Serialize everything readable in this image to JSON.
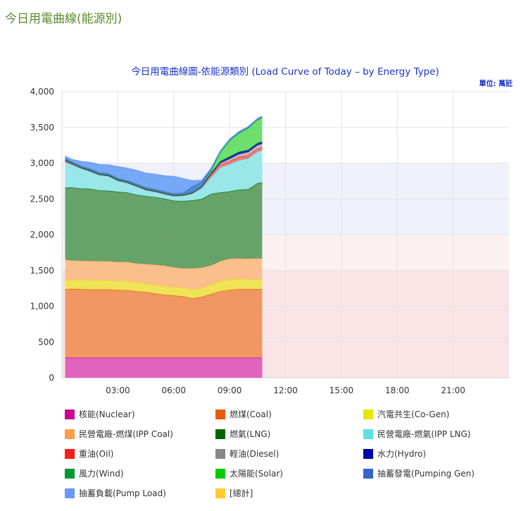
{
  "page": {
    "title": "今日用電曲線(能源別)"
  },
  "chart": {
    "title": "今日用電曲線圖-依能源類別 (Load Curve of Today – by Energy Type)",
    "unit": "單位: 萬瓩"
  },
  "chart_data": {
    "type": "area",
    "stacked": true,
    "title": "今日用電曲線圖-依能源類別 (Load Curve of Today – by Energy Type)",
    "unit_label": "單位: 萬瓩",
    "xlabel": "",
    "ylabel": "",
    "ylim": [
      0,
      4000
    ],
    "xlim_hours": [
      0,
      24
    ],
    "y_ticks": [
      "0",
      "500",
      "1,000",
      "1,500",
      "2,000",
      "2,500",
      "3,000",
      "3,500",
      "4,000"
    ],
    "y_tick_values": [
      0,
      500,
      1000,
      1500,
      2000,
      2500,
      3000,
      3500,
      4000
    ],
    "x_ticks": [
      "03:00",
      "06:00",
      "09:00",
      "12:00",
      "15:00",
      "18:00",
      "21:00"
    ],
    "x_tick_hours": [
      3,
      6,
      9,
      12,
      15,
      18,
      21
    ],
    "grid": true,
    "legend_position": "bottom",
    "background_bands": [
      {
        "from": 0,
        "to": 1500,
        "color": "#f9e3e5"
      },
      {
        "from": 1500,
        "to": 2000,
        "color": "#fcf1f1"
      },
      {
        "from": 2000,
        "to": 3000,
        "color": "#eff0fa"
      }
    ],
    "x": [
      0.17,
      0.5,
      1.0,
      1.5,
      2.0,
      2.5,
      3.0,
      3.5,
      4.0,
      4.5,
      5.0,
      5.5,
      6.0,
      6.5,
      7.0,
      7.5,
      8.0,
      8.5,
      9.0,
      9.5,
      10.0,
      10.5,
      10.75
    ],
    "series": [
      {
        "name": "核能(Nuclear)",
        "color": "#cc0099",
        "fill": "#e05cbc",
        "values": [
          280,
          280,
          280,
          280,
          280,
          280,
          280,
          280,
          280,
          280,
          280,
          280,
          280,
          280,
          280,
          280,
          280,
          280,
          280,
          280,
          280,
          280,
          280
        ]
      },
      {
        "name": "燃煤(Coal)",
        "color": "#e85c0d",
        "fill": "#ee915a",
        "values": [
          955,
          965,
          960,
          955,
          955,
          955,
          950,
          945,
          930,
          920,
          900,
          880,
          870,
          860,
          830,
          850,
          890,
          930,
          950,
          960,
          960,
          960,
          960
        ]
      },
      {
        "name": "汽電共生(Co-Gen)",
        "color": "#e6e600",
        "fill": "#eee350",
        "values": [
          135,
          125,
          130,
          128,
          130,
          125,
          125,
          125,
          120,
          120,
          120,
          118,
          115,
          120,
          120,
          120,
          130,
          140,
          145,
          140,
          135,
          130,
          130
        ]
      },
      {
        "name": "民營電廠-燃煤(IPP Coal)",
        "color": "#ff9f4a",
        "fill": "#fbbc88",
        "values": [
          280,
          270,
          265,
          270,
          265,
          270,
          265,
          270,
          270,
          270,
          280,
          290,
          280,
          270,
          300,
          290,
          270,
          280,
          290,
          290,
          290,
          300,
          300
        ]
      },
      {
        "name": "燃氣(LNG)",
        "color": "#006600",
        "fill": "#5e9e62",
        "values": [
          1010,
          1020,
          1010,
          1010,
          990,
          985,
          980,
          970,
          960,
          950,
          945,
          935,
          930,
          940,
          950,
          960,
          1000,
          960,
          940,
          960,
          970,
          1050,
          1060
        ]
      },
      {
        "name": "民營電廠-燃氣(IPP LNG)",
        "color": "#5ce0e0",
        "fill": "#95e6e8",
        "values": [
          350,
          320,
          280,
          240,
          210,
          200,
          150,
          130,
          110,
          80,
          70,
          60,
          60,
          70,
          90,
          150,
          230,
          350,
          380,
          410,
          430,
          440,
          450
        ]
      },
      {
        "name": "重油(Oil)",
        "color": "#ff1a1a",
        "fill": "#f77070",
        "values": [
          30,
          20,
          15,
          15,
          15,
          15,
          15,
          15,
          15,
          15,
          15,
          15,
          15,
          15,
          15,
          20,
          40,
          40,
          45,
          45,
          45,
          45,
          45
        ]
      },
      {
        "name": "輕油(Diesel)",
        "color": "#888888",
        "fill": "#bbbbbb",
        "values": [
          0,
          0,
          0,
          0,
          0,
          0,
          0,
          0,
          0,
          0,
          0,
          0,
          0,
          0,
          0,
          0,
          5,
          20,
          30,
          40,
          45,
          45,
          45
        ]
      },
      {
        "name": "水力(Hydro)",
        "color": "#0000aa",
        "fill": "#2222aa",
        "values": [
          0,
          0,
          0,
          0,
          0,
          0,
          0,
          0,
          0,
          0,
          0,
          0,
          0,
          0,
          0,
          0,
          10,
          20,
          25,
          25,
          25,
          25,
          25
        ]
      },
      {
        "name": "風力(Wind)",
        "color": "#009933",
        "fill": "#2e8b57",
        "values": [
          10,
          10,
          10,
          10,
          10,
          10,
          10,
          10,
          10,
          10,
          10,
          10,
          10,
          10,
          10,
          10,
          10,
          10,
          10,
          10,
          10,
          10,
          10
        ]
      },
      {
        "name": "太陽能(Solar)",
        "color": "#00cc00",
        "fill": "#66dd66",
        "values": [
          0,
          0,
          0,
          0,
          0,
          0,
          0,
          0,
          0,
          0,
          0,
          0,
          0,
          0,
          0,
          0,
          30,
          120,
          220,
          260,
          300,
          320,
          330
        ]
      },
      {
        "name": "抽蓄發電(Pumping Gen)",
        "color": "#3366cc",
        "fill": "#4a7fd6",
        "values": [
          20,
          15,
          15,
          15,
          15,
          15,
          15,
          15,
          15,
          15,
          15,
          15,
          15,
          20,
          80,
          60,
          30,
          20,
          20,
          20,
          20,
          20,
          20
        ]
      },
      {
        "name": "抽蓄負載(Pump Load)",
        "color": "#6699ff",
        "fill": "#6fa3f5",
        "values": [
          30,
          30,
          60,
          90,
          110,
          120,
          160,
          170,
          190,
          200,
          210,
          220,
          240,
          200,
          80,
          20,
          0,
          0,
          0,
          0,
          0,
          0,
          0
        ]
      },
      {
        "name": "[總計]",
        "color": "#ffcc33",
        "fill": "none",
        "values": [
          3110,
          3055,
          3040,
          3020,
          2995,
          2985,
          2960,
          2935,
          2905,
          2870,
          2850,
          2835,
          2830,
          2830,
          2820,
          2840,
          3070,
          3230,
          3400,
          3490,
          3560,
          3620,
          3640
        ]
      }
    ]
  },
  "legend": {
    "items": [
      {
        "label": "核能(Nuclear)",
        "color": "#cc0099"
      },
      {
        "label": "燃煤(Coal)",
        "color": "#e85c0d"
      },
      {
        "label": "汽電共生(Co-Gen)",
        "color": "#e6e600"
      },
      {
        "label": "民營電廠-燃煤(IPP Coal)",
        "color": "#ff9f4a"
      },
      {
        "label": "燃氣(LNG)",
        "color": "#006600"
      },
      {
        "label": "民營電廠-燃氣(IPP LNG)",
        "color": "#5ce0e0"
      },
      {
        "label": "重油(Oil)",
        "color": "#ff1a1a"
      },
      {
        "label": "輕油(Diesel)",
        "color": "#888888"
      },
      {
        "label": "水力(Hydro)",
        "color": "#0000aa"
      },
      {
        "label": "風力(Wind)",
        "color": "#009933"
      },
      {
        "label": "太陽能(Solar)",
        "color": "#00cc00"
      },
      {
        "label": "抽蓄發電(Pumping Gen)",
        "color": "#3366cc"
      },
      {
        "label": "抽蓄負載(Pump Load)",
        "color": "#6699ff"
      },
      {
        "label": "[總計]",
        "color": "#ffcc33"
      }
    ]
  }
}
